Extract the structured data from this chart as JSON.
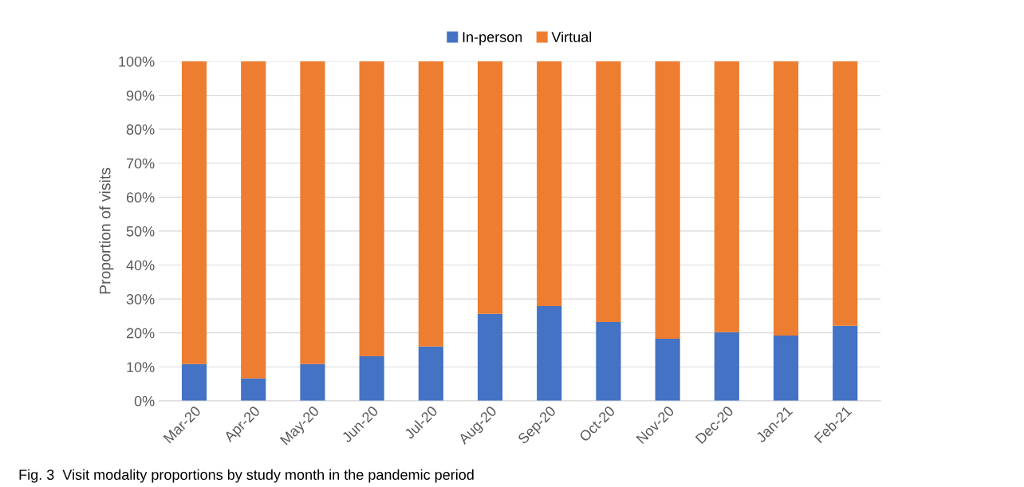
{
  "chart_data": {
    "type": "bar",
    "stacked": true,
    "ylabel": "Proportion of visits",
    "categories": [
      "Mar-20",
      "Apr-20",
      "May-20",
      "Jun-20",
      "Jul-20",
      "Aug-20",
      "Sep-20",
      "Oct-20",
      "Nov-20",
      "Dec-20",
      "Jan-21",
      "Feb-21"
    ],
    "series": [
      {
        "name": "In-person",
        "color": "#4472c4",
        "values": [
          10.8,
          6.6,
          10.8,
          13.1,
          16.0,
          25.6,
          27.9,
          23.2,
          18.3,
          20.2,
          19.2,
          22.1
        ]
      },
      {
        "name": "Virtual",
        "color": "#ed7d31",
        "values": [
          89.2,
          93.4,
          89.2,
          86.9,
          84.0,
          74.4,
          72.1,
          76.8,
          81.7,
          79.8,
          80.8,
          77.9
        ]
      }
    ],
    "ylim": [
      0,
      100
    ],
    "yticks": [
      {
        "value": 0,
        "label": "0%"
      },
      {
        "value": 10,
        "label": "10%"
      },
      {
        "value": 20,
        "label": "20%"
      },
      {
        "value": 30,
        "label": "30%"
      },
      {
        "value": 40,
        "label": "40%"
      },
      {
        "value": 50,
        "label": "50%"
      },
      {
        "value": 60,
        "label": "60%"
      },
      {
        "value": 70,
        "label": "70%"
      },
      {
        "value": 80,
        "label": "80%"
      },
      {
        "value": 90,
        "label": "90%"
      },
      {
        "value": 100,
        "label": "100%"
      }
    ],
    "grid": "y",
    "legend": "top",
    "annotations": [
      "Fig. 3  Visit modality proportions by study month in the pandemic period"
    ]
  }
}
